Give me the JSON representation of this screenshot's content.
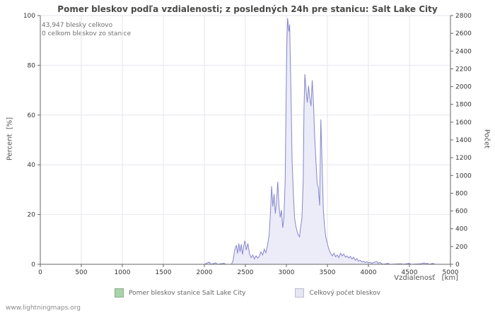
{
  "title": "Pomer bleskov podľa vzdialenosti; z posledných 24h pre stanicu: Salt Lake City",
  "annotations": {
    "total": "43,947 blesky celkovo",
    "station": "0 celkom bleskov zo stanice"
  },
  "axes": {
    "left_label": "Percent  [%]",
    "right_label": "Počet",
    "x_label": "Vzdialenosť   [km]"
  },
  "legend": [
    {
      "label": "Pomer bleskov stanice Salt Lake City",
      "color": "#a9d3a9"
    },
    {
      "label": "Celkový počet bleskov",
      "color": "#e6e6f7"
    }
  ],
  "footer": "www.lightningmaps.org",
  "chart_data": {
    "type": "area",
    "title": "Pomer bleskov podľa vzdialenosti; z posledných 24h pre stanicu: Salt Lake City",
    "xlabel": "Vzdialenosť [km]",
    "xlim": [
      0,
      5000
    ],
    "xticks": [
      0,
      500,
      1000,
      1500,
      2000,
      2500,
      3000,
      3500,
      4000,
      4500,
      5000
    ],
    "left_axis": {
      "label": "Percent [%]",
      "lim": [
        0,
        100
      ],
      "ticks": [
        0,
        20,
        40,
        60,
        80,
        100
      ]
    },
    "right_axis": {
      "label": "Počet",
      "lim": [
        0,
        2800
      ],
      "ticks": [
        0,
        200,
        400,
        600,
        800,
        1000,
        1200,
        1400,
        1600,
        1800,
        2000,
        2200,
        2400,
        2600,
        2800
      ]
    },
    "grid": true,
    "legend_position": "bottom",
    "series": [
      {
        "name": "Pomer bleskov stanice Salt Lake City",
        "axis": "left",
        "fill": "#a9d3a9",
        "stroke": "#8cbf8c",
        "points": [
          [
            0,
            0
          ],
          [
            5000,
            0
          ]
        ]
      },
      {
        "name": "Celkový počet bleskov",
        "axis": "right",
        "fill": "#ececf9",
        "stroke": "#8585cc",
        "points": [
          [
            0,
            0
          ],
          [
            2000,
            0
          ],
          [
            2060,
            25
          ],
          [
            2080,
            0
          ],
          [
            2140,
            15
          ],
          [
            2160,
            0
          ],
          [
            2240,
            12
          ],
          [
            2260,
            0
          ],
          [
            2330,
            0
          ],
          [
            2350,
            40
          ],
          [
            2370,
            160
          ],
          [
            2390,
            215
          ],
          [
            2405,
            120
          ],
          [
            2420,
            235
          ],
          [
            2435,
            140
          ],
          [
            2450,
            225
          ],
          [
            2465,
            110
          ],
          [
            2480,
            205
          ],
          [
            2495,
            265
          ],
          [
            2510,
            160
          ],
          [
            2530,
            235
          ],
          [
            2550,
            120
          ],
          [
            2570,
            75
          ],
          [
            2590,
            105
          ],
          [
            2610,
            60
          ],
          [
            2630,
            95
          ],
          [
            2650,
            70
          ],
          [
            2670,
            90
          ],
          [
            2690,
            140
          ],
          [
            2710,
            105
          ],
          [
            2730,
            170
          ],
          [
            2750,
            130
          ],
          [
            2770,
            215
          ],
          [
            2790,
            330
          ],
          [
            2805,
            570
          ],
          [
            2820,
            880
          ],
          [
            2835,
            650
          ],
          [
            2850,
            790
          ],
          [
            2865,
            570
          ],
          [
            2880,
            710
          ],
          [
            2895,
            930
          ],
          [
            2910,
            650
          ],
          [
            2925,
            530
          ],
          [
            2940,
            610
          ],
          [
            2955,
            410
          ],
          [
            2970,
            530
          ],
          [
            2985,
            950
          ],
          [
            2995,
            1750
          ],
          [
            3005,
            2460
          ],
          [
            3015,
            2770
          ],
          [
            3030,
            2620
          ],
          [
            3040,
            2700
          ],
          [
            3055,
            1950
          ],
          [
            3070,
            1150
          ],
          [
            3085,
            780
          ],
          [
            3100,
            520
          ],
          [
            3115,
            430
          ],
          [
            3130,
            370
          ],
          [
            3145,
            330
          ],
          [
            3160,
            310
          ],
          [
            3175,
            430
          ],
          [
            3190,
            520
          ],
          [
            3205,
            950
          ],
          [
            3215,
            1750
          ],
          [
            3225,
            2140
          ],
          [
            3240,
            1960
          ],
          [
            3255,
            1820
          ],
          [
            3270,
            2010
          ],
          [
            3285,
            1870
          ],
          [
            3300,
            1780
          ],
          [
            3315,
            2070
          ],
          [
            3330,
            1820
          ],
          [
            3345,
            1430
          ],
          [
            3360,
            1160
          ],
          [
            3375,
            910
          ],
          [
            3390,
            860
          ],
          [
            3405,
            660
          ],
          [
            3420,
            1630
          ],
          [
            3435,
            1120
          ],
          [
            3450,
            620
          ],
          [
            3465,
            430
          ],
          [
            3480,
            310
          ],
          [
            3500,
            230
          ],
          [
            3520,
            165
          ],
          [
            3540,
            120
          ],
          [
            3560,
            95
          ],
          [
            3580,
            125
          ],
          [
            3600,
            85
          ],
          [
            3620,
            105
          ],
          [
            3640,
            75
          ],
          [
            3660,
            125
          ],
          [
            3680,
            95
          ],
          [
            3700,
            115
          ],
          [
            3720,
            80
          ],
          [
            3740,
            95
          ],
          [
            3760,
            70
          ],
          [
            3780,
            90
          ],
          [
            3800,
            60
          ],
          [
            3820,
            80
          ],
          [
            3840,
            45
          ],
          [
            3860,
            65
          ],
          [
            3880,
            35
          ],
          [
            3900,
            45
          ],
          [
            3920,
            25
          ],
          [
            3940,
            35
          ],
          [
            3960,
            20
          ],
          [
            3980,
            30
          ],
          [
            4000,
            15
          ],
          [
            4020,
            25
          ],
          [
            4040,
            12
          ],
          [
            4060,
            20
          ],
          [
            4100,
            30
          ],
          [
            4120,
            12
          ],
          [
            4140,
            22
          ],
          [
            4160,
            8
          ],
          [
            4180,
            0
          ],
          [
            4240,
            10
          ],
          [
            4260,
            0
          ],
          [
            4400,
            6
          ],
          [
            4420,
            0
          ],
          [
            4500,
            10
          ],
          [
            4520,
            0
          ],
          [
            4640,
            6
          ],
          [
            4680,
            15
          ],
          [
            4700,
            6
          ],
          [
            4720,
            12
          ],
          [
            4740,
            0
          ],
          [
            4790,
            10
          ],
          [
            4810,
            0
          ],
          [
            5000,
            0
          ]
        ]
      }
    ]
  }
}
